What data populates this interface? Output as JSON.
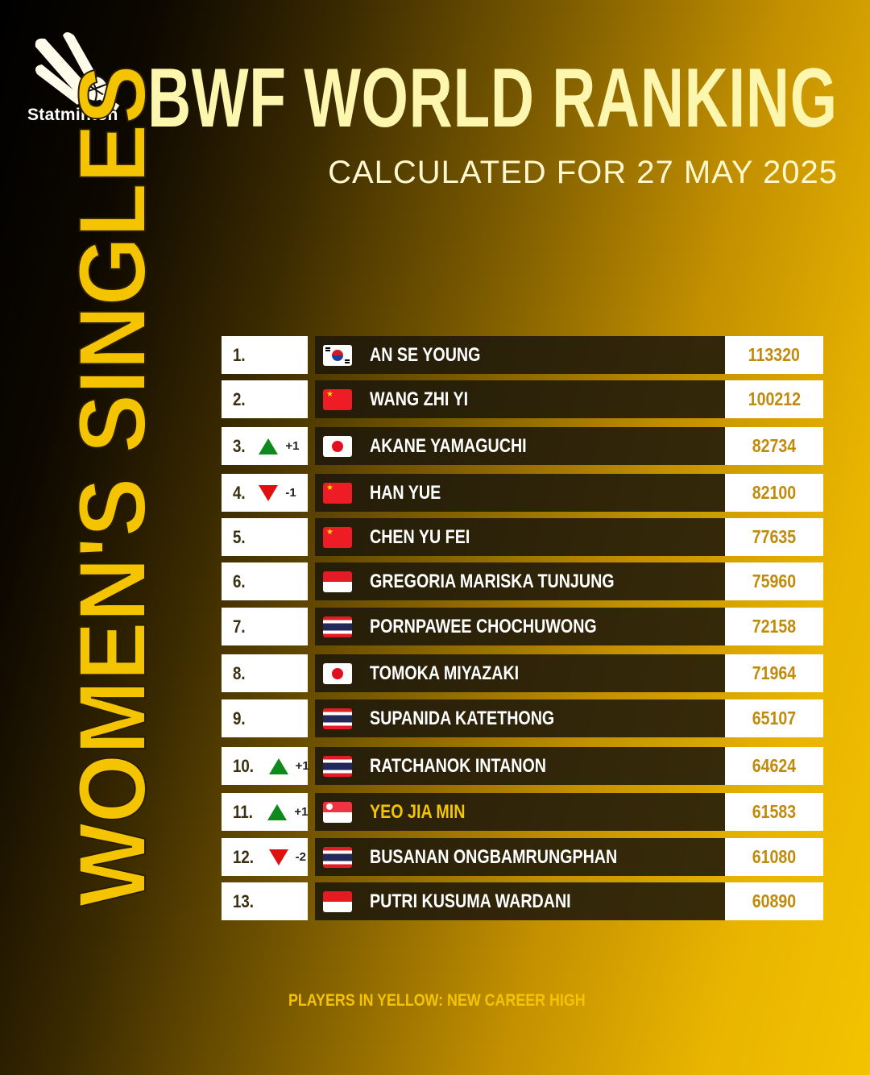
{
  "brand": {
    "name": "Statminton",
    "icon": "shuttlecock-icon"
  },
  "header": {
    "title": "BWF WORLD RANKING",
    "subtitle": "CALCULATED FOR 27 MAY 2025"
  },
  "category": "WOMEN'S SINGLES",
  "colors": {
    "highlight": "#f5c400",
    "up": "#0e8a1c",
    "down": "#e01010",
    "points": "#c08b0c"
  },
  "rows": [
    {
      "rank": "1.",
      "change": "",
      "dir": "",
      "flag": "kr",
      "name": "AN SE YOUNG",
      "points": "113320",
      "career_high": false
    },
    {
      "rank": "2.",
      "change": "",
      "dir": "",
      "flag": "cn",
      "name": "WANG ZHI YI",
      "points": "100212",
      "career_high": false
    },
    {
      "rank": "3.",
      "change": "+1",
      "dir": "up",
      "flag": "jp",
      "name": "AKANE YAMAGUCHI",
      "points": "82734",
      "career_high": false
    },
    {
      "rank": "4.",
      "change": "-1",
      "dir": "down",
      "flag": "cn",
      "name": "HAN YUE",
      "points": "82100",
      "career_high": false
    },
    {
      "rank": "5.",
      "change": "",
      "dir": "",
      "flag": "cn",
      "name": "CHEN YU FEI",
      "points": "77635",
      "career_high": false
    },
    {
      "rank": "6.",
      "change": "",
      "dir": "",
      "flag": "id",
      "name": "GREGORIA MARISKA TUNJUNG",
      "points": "75960",
      "career_high": false
    },
    {
      "rank": "7.",
      "change": "",
      "dir": "",
      "flag": "th",
      "name": "PORNPAWEE CHOCHUWONG",
      "points": "72158",
      "career_high": false
    },
    {
      "rank": "8.",
      "change": "",
      "dir": "",
      "flag": "jp",
      "name": "TOMOKA MIYAZAKI",
      "points": "71964",
      "career_high": false
    },
    {
      "rank": "9.",
      "change": "",
      "dir": "",
      "flag": "th",
      "name": "SUPANIDA KATETHONG",
      "points": "65107",
      "career_high": false
    },
    {
      "rank": "10.",
      "change": "+1",
      "dir": "up",
      "flag": "th",
      "name": "RATCHANOK INTANON",
      "points": "64624",
      "career_high": false
    },
    {
      "rank": "11.",
      "change": "+1",
      "dir": "up",
      "flag": "sg",
      "name": "YEO JIA MIN",
      "points": "61583",
      "career_high": true
    },
    {
      "rank": "12.",
      "change": "-2",
      "dir": "down",
      "flag": "th",
      "name": "BUSANAN ONGBAMRUNGPHAN",
      "points": "61080",
      "career_high": false
    },
    {
      "rank": "13.",
      "change": "",
      "dir": "",
      "flag": "id",
      "name": "PUTRI KUSUMA WARDANI",
      "points": "60890",
      "career_high": false
    }
  ],
  "footer": "PLAYERS IN YELLOW: NEW CAREER HIGH"
}
